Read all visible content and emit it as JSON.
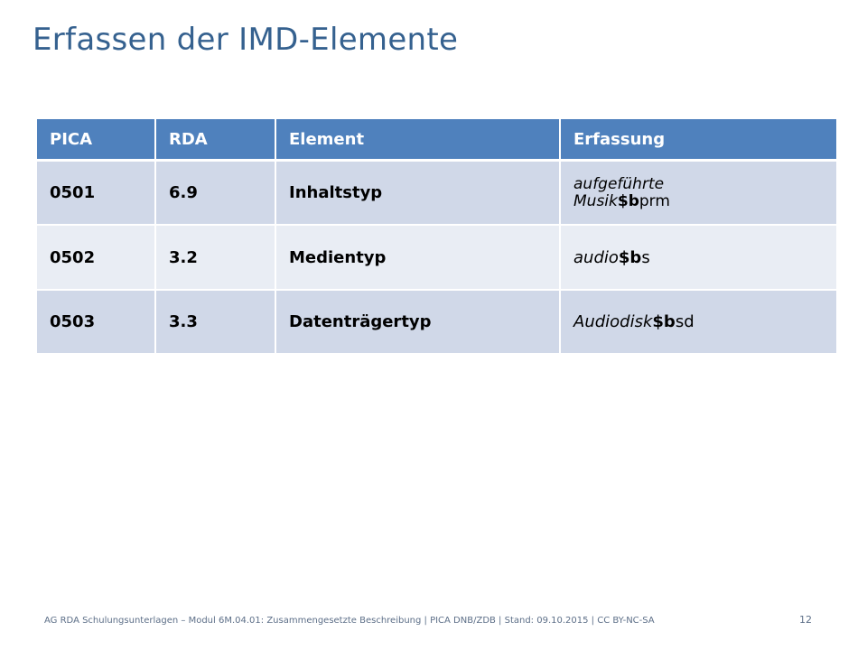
{
  "slide": {
    "title": "Erfassen der IMD-Elemente",
    "footer": "AG RDA Schulungsunterlagen – Modul 6M.04.01: Zusammengesetzte Beschreibung | PICA DNB/ZDB | Stand: 09.10.2015 | CC BY-NC-SA",
    "page_number": "12"
  },
  "table": {
    "headers": [
      "PICA",
      "RDA",
      "Element",
      "Erfassung"
    ],
    "rows": [
      {
        "pica": "0501",
        "rda": "6.9",
        "element": "Inhaltstyp",
        "erfassung_text": "aufgeführte Musik",
        "erfassung_code": "$b",
        "erfassung_value": "prm"
      },
      {
        "pica": "0502",
        "rda": "3.2",
        "element": "Medientyp",
        "erfassung_text": "audio",
        "erfassung_code": "$b",
        "erfassung_value": "s"
      },
      {
        "pica": "0503",
        "rda": "3.3",
        "element": "Datenträgertyp",
        "erfassung_text": "Audiodisk",
        "erfassung_code": "$b",
        "erfassung_value": "sd"
      }
    ]
  },
  "colors": {
    "title": "#35618f",
    "header_bg": "#4f81bd",
    "row_odd_bg": "#d0d8e8",
    "row_even_bg": "#e9edf4"
  }
}
